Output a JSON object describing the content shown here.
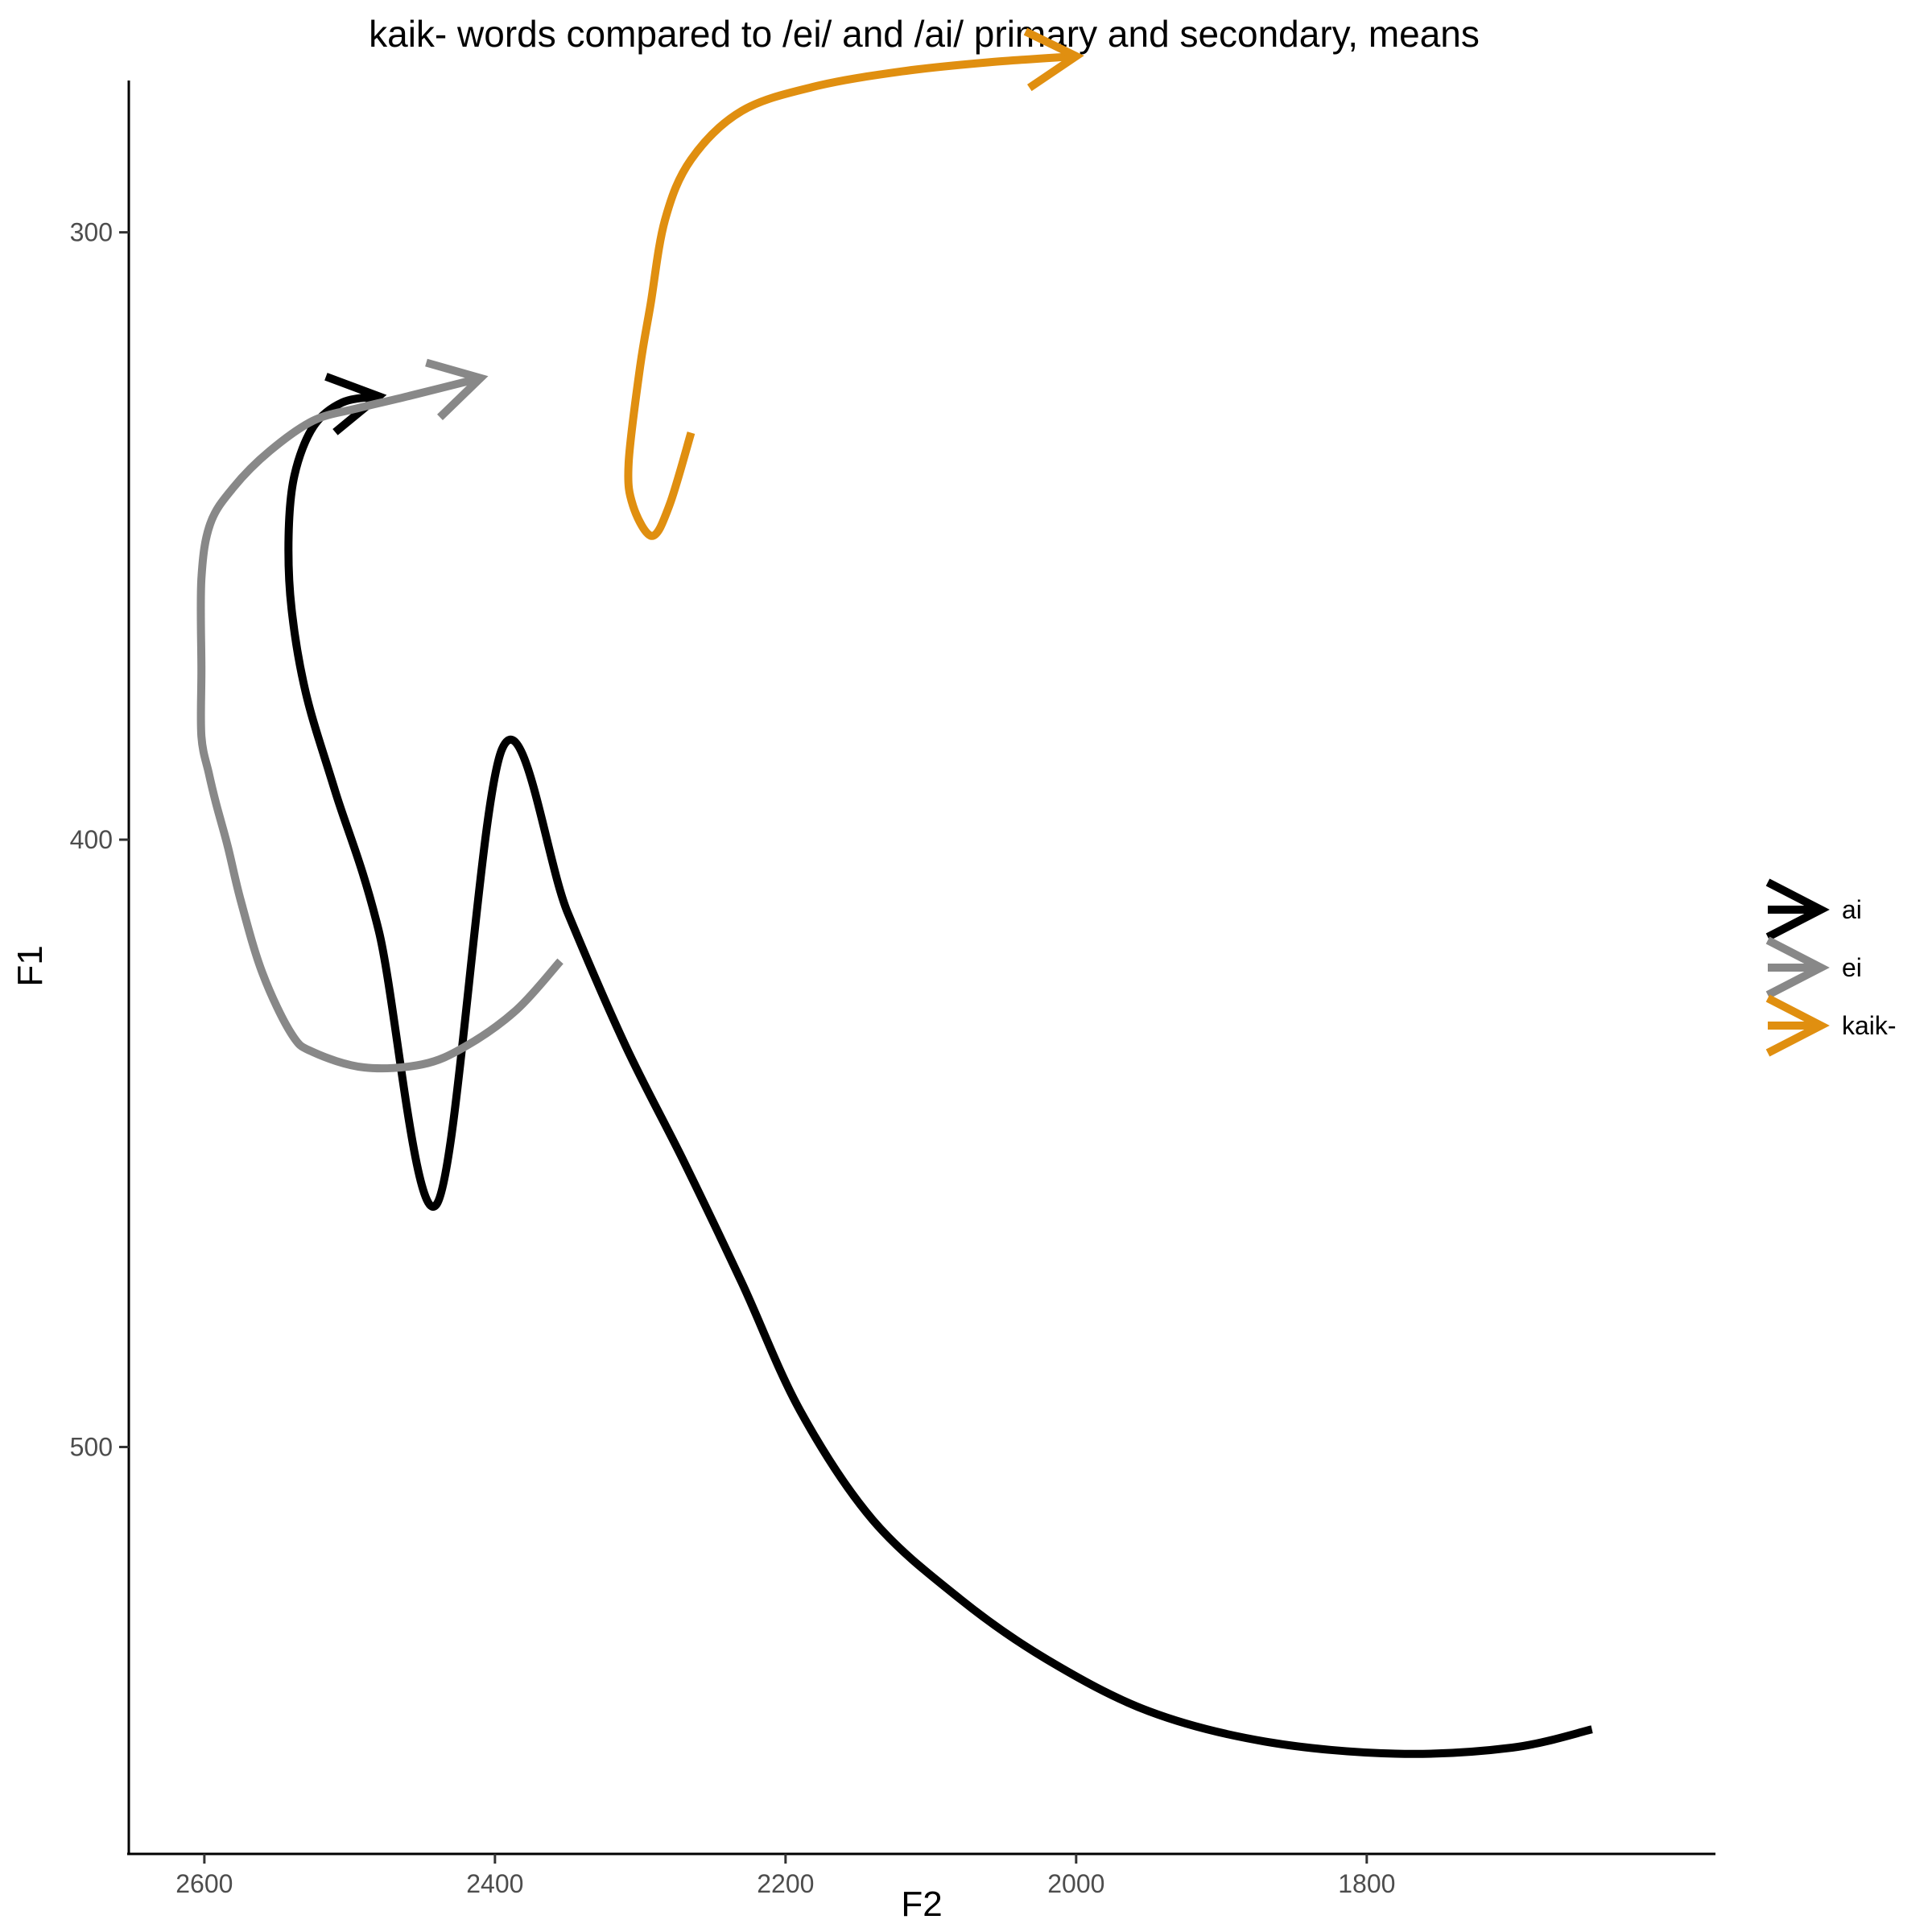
{
  "chart_data": {
    "type": "line",
    "title": "kaik- words compared to /ei/ and /ai/ primary and secondary, means",
    "xlabel": "F2",
    "ylabel": "F1",
    "x_reversed": true,
    "y_reversed": true,
    "xlim": [
      1560,
      2652
    ],
    "ylim": [
      275,
      567
    ],
    "x_ticks": [
      {
        "value": 2600,
        "label": "2600"
      },
      {
        "value": 2400,
        "label": "2400"
      },
      {
        "value": 2200,
        "label": "2200"
      },
      {
        "value": 2000,
        "label": "2000"
      },
      {
        "value": 1800,
        "label": "1800"
      }
    ],
    "y_ticks": [
      {
        "value": 300,
        "label": "300"
      },
      {
        "value": 400,
        "label": "400"
      },
      {
        "value": 500,
        "label": "500"
      }
    ],
    "grid": false,
    "legend": "right",
    "series": [
      {
        "name": "ai",
        "color": "#000000",
        "points": [
          [
            1645,
            546.5
          ],
          [
            1700,
            549.5
          ],
          [
            1780,
            550.5
          ],
          [
            1870,
            548.5
          ],
          [
            1950,
            543.5
          ],
          [
            2020,
            535
          ],
          [
            2080,
            525
          ],
          [
            2140,
            512
          ],
          [
            2190,
            494
          ],
          [
            2230,
            473
          ],
          [
            2270,
            453
          ],
          [
            2310,
            434
          ],
          [
            2350,
            412
          ],
          [
            2395,
            385
          ],
          [
            2440,
            460
          ],
          [
            2480,
            415
          ],
          [
            2510,
            392
          ],
          [
            2530,
            376
          ],
          [
            2540,
            362
          ],
          [
            2542,
            350
          ],
          [
            2538,
            340
          ],
          [
            2525,
            332
          ],
          [
            2505,
            328
          ],
          [
            2480,
            327
          ]
        ]
      },
      {
        "name": "ei",
        "color": "#888888",
        "points": [
          [
            2355,
            420
          ],
          [
            2385,
            428
          ],
          [
            2420,
            434
          ],
          [
            2450,
            437
          ],
          [
            2490,
            437.5
          ],
          [
            2525,
            435
          ],
          [
            2540,
            432
          ],
          [
            2560,
            422
          ],
          [
            2575,
            410
          ],
          [
            2584,
            401
          ],
          [
            2592,
            394
          ],
          [
            2597,
            389
          ],
          [
            2602,
            383
          ],
          [
            2602,
            372
          ],
          [
            2602,
            357
          ],
          [
            2596,
            348
          ],
          [
            2580,
            342
          ],
          [
            2555,
            336
          ],
          [
            2525,
            331
          ],
          [
            2495,
            329
          ],
          [
            2460,
            327
          ],
          [
            2410,
            324
          ]
        ]
      },
      {
        "name": "kaik-",
        "color": "#e08f10",
        "points": [
          [
            2265,
            333
          ],
          [
            2280,
            345
          ],
          [
            2292,
            350
          ],
          [
            2305,
            345
          ],
          [
            2308,
            338
          ],
          [
            2300,
            322
          ],
          [
            2293,
            312
          ],
          [
            2283,
            298
          ],
          [
            2265,
            288
          ],
          [
            2230,
            280
          ],
          [
            2180,
            276
          ],
          [
            2120,
            273.5
          ],
          [
            2060,
            272
          ],
          [
            2000,
            271
          ]
        ]
      }
    ]
  }
}
